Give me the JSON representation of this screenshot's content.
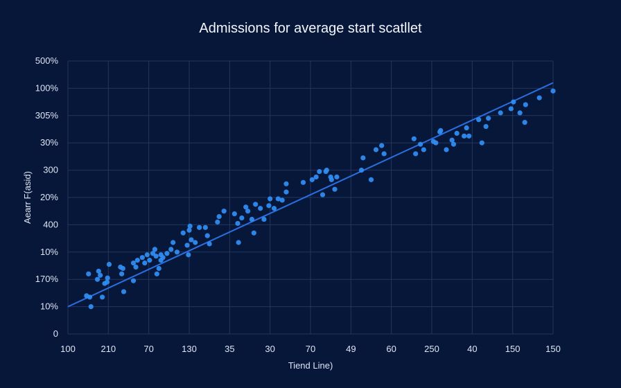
{
  "chart_data": {
    "type": "scatter",
    "title": "Admissions for average start scatllet",
    "xlabel": "Tiend Line)",
    "ylabel": "Aearr F(asid)",
    "x_tick_labels": [
      "100",
      "210",
      "70",
      "130",
      "35",
      "30",
      "70",
      "49",
      "60",
      "250",
      "40",
      "150",
      "150"
    ],
    "y_tick_labels": [
      "500%",
      "100%",
      "305%",
      "30%",
      "300",
      "20%",
      "400",
      "10%",
      "170%",
      "10%",
      "0"
    ],
    "xlim": [
      0,
      12
    ],
    "ylim": [
      0,
      10
    ],
    "grid": true,
    "point_color": "#2f8cf0",
    "line_color": "#2a6fe0",
    "background": "#07173a",
    "trend_line": {
      "x": [
        0,
        12
      ],
      "y": [
        1.0,
        9.2
      ]
    },
    "points": [
      [
        0.46,
        1.4
      ],
      [
        0.54,
        1.35
      ],
      [
        0.51,
        2.2
      ],
      [
        0.57,
        1.0
      ],
      [
        0.73,
        2.0
      ],
      [
        0.76,
        2.3
      ],
      [
        0.8,
        2.15
      ],
      [
        0.85,
        1.35
      ],
      [
        0.91,
        1.85
      ],
      [
        0.97,
        1.9
      ],
      [
        0.98,
        2.05
      ],
      [
        1.02,
        2.55
      ],
      [
        1.3,
        2.45
      ],
      [
        1.33,
        2.2
      ],
      [
        1.36,
        2.4
      ],
      [
        1.38,
        1.55
      ],
      [
        1.62,
        2.6
      ],
      [
        1.68,
        2.45
      ],
      [
        1.72,
        2.7
      ],
      [
        1.84,
        2.8
      ],
      [
        1.9,
        2.6
      ],
      [
        1.96,
        2.9
      ],
      [
        2.02,
        2.7
      ],
      [
        2.1,
        2.95
      ],
      [
        2.15,
        3.1
      ],
      [
        2.18,
        2.85
      ],
      [
        2.2,
        2.2
      ],
      [
        2.25,
        2.4
      ],
      [
        2.3,
        2.9
      ],
      [
        2.3,
        2.7
      ],
      [
        2.35,
        2.8
      ],
      [
        2.45,
        2.95
      ],
      [
        2.55,
        3.1
      ],
      [
        2.6,
        3.35
      ],
      [
        2.7,
        3.0
      ],
      [
        2.85,
        3.7
      ],
      [
        2.95,
        3.25
      ],
      [
        3.0,
        3.8
      ],
      [
        3.05,
        3.45
      ],
      [
        3.15,
        3.35
      ],
      [
        3.25,
        3.9
      ],
      [
        3.4,
        3.9
      ],
      [
        3.45,
        3.6
      ],
      [
        3.5,
        3.3
      ],
      [
        3.7,
        4.1
      ],
      [
        3.74,
        4.3
      ],
      [
        3.86,
        4.5
      ],
      [
        4.12,
        4.4
      ],
      [
        4.2,
        4.05
      ],
      [
        4.22,
        3.35
      ],
      [
        4.3,
        4.25
      ],
      [
        4.4,
        4.65
      ],
      [
        4.45,
        4.5
      ],
      [
        4.55,
        4.2
      ],
      [
        4.64,
        4.75
      ],
      [
        4.76,
        4.6
      ],
      [
        4.85,
        4.2
      ],
      [
        4.97,
        4.7
      ],
      [
        5.0,
        4.95
      ],
      [
        5.1,
        4.6
      ],
      [
        5.3,
        4.9
      ],
      [
        5.4,
        5.2
      ],
      [
        5.4,
        5.5
      ],
      [
        5.82,
        5.55
      ],
      [
        6.04,
        5.65
      ],
      [
        6.14,
        5.75
      ],
      [
        6.22,
        5.95
      ],
      [
        6.3,
        5.1
      ],
      [
        6.38,
        5.95
      ],
      [
        6.4,
        6.0
      ],
      [
        6.5,
        5.75
      ],
      [
        6.52,
        5.65
      ],
      [
        6.65,
        5.75
      ],
      [
        7.26,
        6.0
      ],
      [
        7.3,
        6.45
      ],
      [
        7.5,
        5.65
      ],
      [
        7.62,
        6.75
      ],
      [
        7.76,
        6.9
      ],
      [
        7.82,
        6.6
      ],
      [
        8.6,
        6.6
      ],
      [
        8.72,
        6.95
      ],
      [
        8.8,
        6.75
      ],
      [
        9.1,
        7.0
      ],
      [
        9.04,
        7.05
      ],
      [
        9.2,
        7.4
      ],
      [
        9.36,
        6.75
      ],
      [
        9.5,
        7.1
      ],
      [
        9.54,
        6.95
      ],
      [
        9.62,
        7.35
      ],
      [
        9.8,
        7.25
      ],
      [
        9.86,
        7.55
      ],
      [
        9.92,
        7.25
      ],
      [
        10.16,
        7.85
      ],
      [
        10.24,
        7.0
      ],
      [
        10.34,
        7.6
      ],
      [
        10.4,
        7.9
      ],
      [
        10.7,
        8.1
      ],
      [
        10.96,
        8.25
      ],
      [
        11.02,
        8.5
      ],
      [
        11.18,
        8.1
      ],
      [
        11.3,
        7.75
      ],
      [
        11.32,
        8.4
      ],
      [
        11.66,
        8.65
      ],
      [
        12.0,
        8.9
      ],
      [
        4.6,
        3.7
      ],
      [
        5.2,
        4.95
      ],
      [
        3.02,
        3.95
      ],
      [
        6.6,
        5.3
      ],
      [
        8.56,
        7.15
      ],
      [
        9.22,
        7.45
      ],
      [
        2.98,
        2.9
      ],
      [
        1.62,
        1.95
      ]
    ]
  }
}
